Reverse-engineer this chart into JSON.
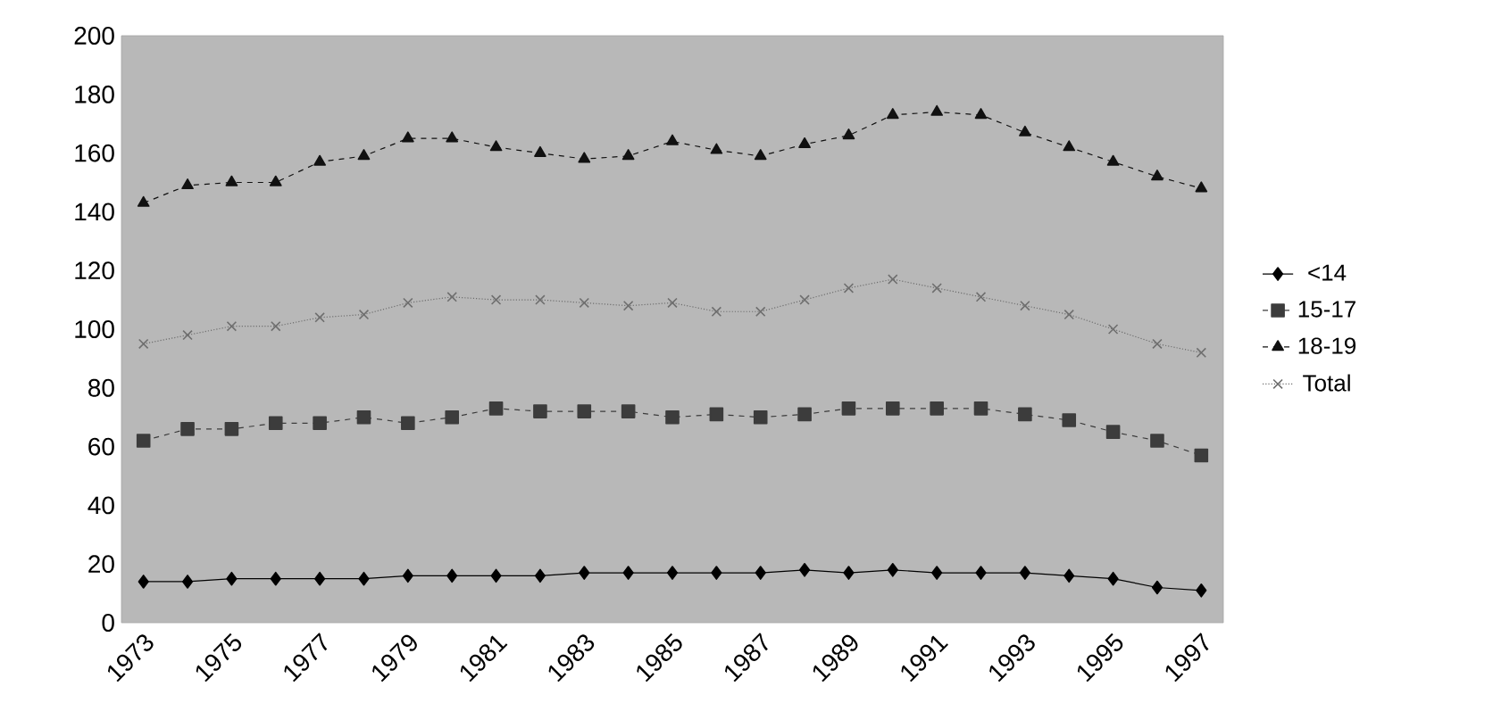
{
  "chart_data": {
    "type": "line",
    "categories": [
      "1973",
      null,
      "1975",
      null,
      "1977",
      null,
      "1979",
      null,
      "1981",
      null,
      "1983",
      null,
      "1985",
      null,
      "1987",
      null,
      "1989",
      null,
      "1991",
      null,
      "1993",
      null,
      "1995",
      null,
      "1997"
    ],
    "series": [
      {
        "name": "<14",
        "color": "#000000",
        "marker": "diamond",
        "line_style": "solid",
        "values": [
          14,
          14,
          15,
          15,
          15,
          15,
          16,
          16,
          16,
          16,
          17,
          17,
          17,
          17,
          17,
          18,
          17,
          18,
          17,
          17,
          17,
          16,
          15,
          12,
          11
        ]
      },
      {
        "name": "15-17",
        "color": "#3c3c3c",
        "marker": "square",
        "line_style": "dashed",
        "values": [
          62,
          66,
          66,
          68,
          68,
          70,
          68,
          70,
          73,
          72,
          72,
          72,
          70,
          71,
          70,
          71,
          73,
          73,
          73,
          73,
          71,
          69,
          65,
          62,
          57
        ]
      },
      {
        "name": "18-19",
        "color": "#111111",
        "marker": "triangle",
        "line_style": "dashed",
        "values": [
          143,
          149,
          150,
          150,
          157,
          159,
          165,
          165,
          162,
          160,
          158,
          159,
          164,
          161,
          159,
          163,
          166,
          173,
          174,
          173,
          167,
          162,
          157,
          152,
          148
        ]
      },
      {
        "name": "Total",
        "color": "#6e6e6e",
        "marker": "cross",
        "line_style": "dotted",
        "values": [
          95,
          98,
          101,
          101,
          104,
          105,
          109,
          111,
          110,
          110,
          109,
          108,
          109,
          106,
          106,
          110,
          114,
          117,
          114,
          111,
          108,
          105,
          100,
          95,
          92
        ]
      }
    ],
    "ylim": [
      0,
      200
    ],
    "yticks": [
      0,
      20,
      40,
      60,
      80,
      100,
      120,
      140,
      160,
      180,
      200
    ],
    "grid": false,
    "legend": "right"
  }
}
